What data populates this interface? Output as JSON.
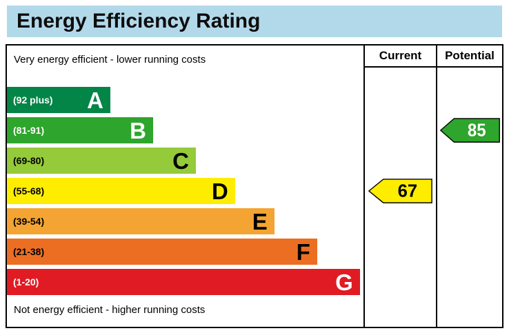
{
  "title": "Energy Efficiency Rating",
  "table": {
    "current_header": "Current",
    "potential_header": "Potential"
  },
  "notes": {
    "top": "Very energy efficient - lower running costs",
    "bottom": "Not energy efficient - higher running costs"
  },
  "chart_data": {
    "type": "bar",
    "title": "Energy Efficiency Rating",
    "bands": [
      {
        "letter": "A",
        "range_label": "(92 plus)",
        "min": 92,
        "max": 100,
        "color": "#028546",
        "text_color": "#ffffff",
        "width_pct": 29
      },
      {
        "letter": "B",
        "range_label": "(81-91)",
        "min": 81,
        "max": 91,
        "color": "#2ea52c",
        "text_color": "#ffffff",
        "width_pct": 41
      },
      {
        "letter": "C",
        "range_label": "(69-80)",
        "min": 69,
        "max": 80,
        "color": "#95ca3a",
        "text_color": "#000000",
        "width_pct": 53
      },
      {
        "letter": "D",
        "range_label": "(55-68)",
        "min": 55,
        "max": 68,
        "color": "#ffed00",
        "text_color": "#000000",
        "width_pct": 64
      },
      {
        "letter": "E",
        "range_label": "(39-54)",
        "min": 39,
        "max": 54,
        "color": "#f4a432",
        "text_color": "#000000",
        "width_pct": 75
      },
      {
        "letter": "F",
        "range_label": "(21-38)",
        "min": 21,
        "max": 38,
        "color": "#ec6e23",
        "text_color": "#000000",
        "width_pct": 87
      },
      {
        "letter": "G",
        "range_label": "(1-20)",
        "min": 1,
        "max": 20,
        "color": "#e01b23",
        "text_color": "#ffffff",
        "width_pct": 99
      }
    ],
    "markers": {
      "current": {
        "value": 67,
        "band": "D",
        "band_index": 3,
        "color": "#ffed00",
        "text_color": "#000000",
        "stroke": "#000000"
      },
      "potential": {
        "value": 85,
        "band": "B",
        "band_index": 1,
        "color": "#2ea52c",
        "text_color": "#ffffff",
        "stroke": "#000000"
      }
    },
    "colors": {
      "title_bar_bg": "#b2d9ea",
      "border": "#000000"
    },
    "legend_position": "none",
    "grid": false
  }
}
